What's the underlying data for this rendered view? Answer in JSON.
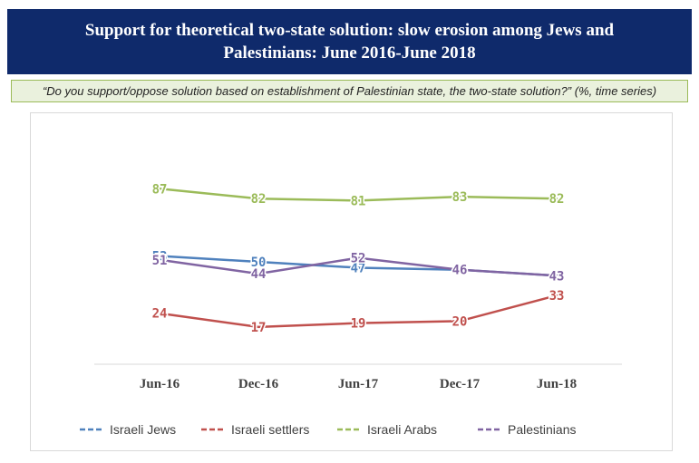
{
  "header": {
    "title_line1": "Support for theoretical two-state solution: slow erosion among Jews and",
    "title_line2": "Palestinians: June 2016-June 2018"
  },
  "question": "“Do you support/oppose solution based on establishment of Palestinian state, the two-state solution?” (%, time series)",
  "chart_data": {
    "type": "line",
    "categories": [
      "Jun-16",
      "Dec-16",
      "Jun-17",
      "Dec-17",
      "Jun-18"
    ],
    "series": [
      {
        "name": "Israeli Jews",
        "color": "#4f81bd",
        "values": [
          53,
          50,
          47,
          46,
          43
        ]
      },
      {
        "name": "Israeli settlers",
        "color": "#c0504d",
        "values": [
          24,
          17,
          19,
          20,
          33
        ]
      },
      {
        "name": "Israeli Arabs",
        "color": "#9bbb59",
        "values": [
          87,
          82,
          81,
          83,
          82
        ]
      },
      {
        "name": "Palestinians",
        "color": "#8064a2",
        "values": [
          51,
          44,
          52,
          46,
          43
        ]
      }
    ],
    "ylim": [
      0,
      100
    ],
    "grid": false,
    "legend_position": "bottom"
  }
}
